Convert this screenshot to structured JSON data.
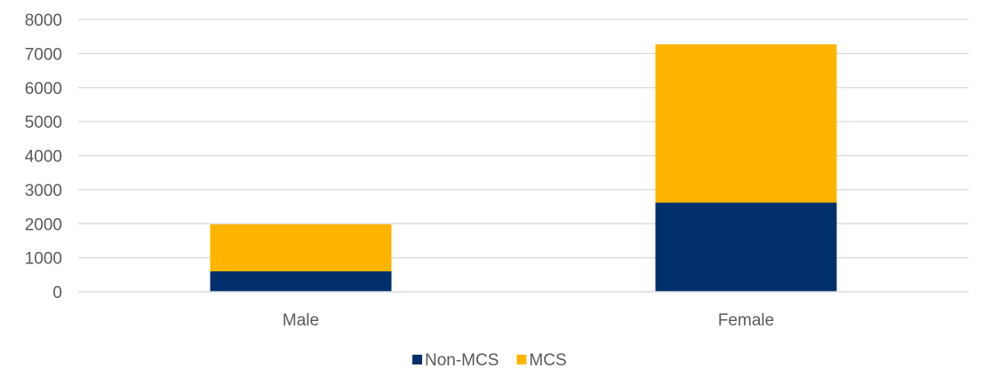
{
  "chart_data": {
    "type": "bar",
    "stacked": true,
    "categories": [
      "Male",
      "Female"
    ],
    "series": [
      {
        "name": "Non-MCS",
        "values": [
          600,
          2620
        ],
        "color": "#002F6C"
      },
      {
        "name": "MCS",
        "values": [
          1380,
          4650
        ],
        "color": "#FFB500"
      }
    ],
    "title": "",
    "xlabel": "",
    "ylabel": "",
    "ylim": [
      0,
      8000
    ],
    "yticks": [
      "0",
      "1000",
      "2000",
      "3000",
      "4000",
      "5000",
      "6000",
      "7000",
      "8000"
    ],
    "grid": true,
    "legend_position": "bottom"
  }
}
